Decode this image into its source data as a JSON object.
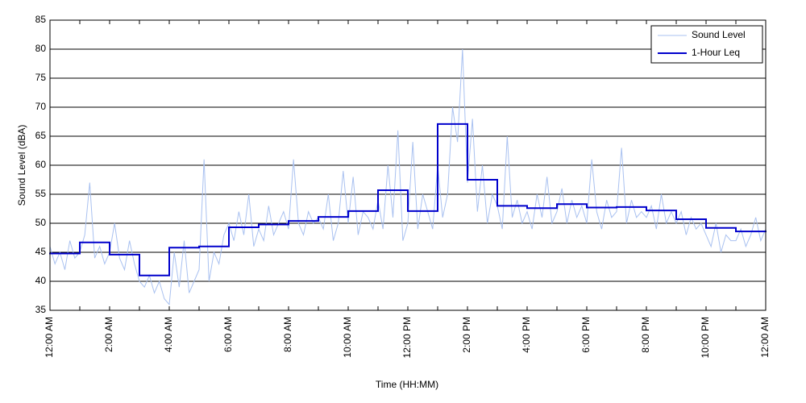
{
  "chart_data": {
    "type": "line",
    "xlabel": "Time (HH:MM)",
    "ylabel": "Sound Level (dBA)",
    "xlim": [
      0,
      1440
    ],
    "ylim": [
      35,
      85
    ],
    "yticks": [
      35,
      40,
      45,
      50,
      55,
      60,
      65,
      70,
      75,
      80,
      85
    ],
    "xticks": [
      {
        "value": 0,
        "label": "12:00 AM"
      },
      {
        "value": 60,
        "label": null
      },
      {
        "value": 120,
        "label": "2:00 AM"
      },
      {
        "value": 180,
        "label": null
      },
      {
        "value": 240,
        "label": "4:00 AM"
      },
      {
        "value": 300,
        "label": null
      },
      {
        "value": 360,
        "label": "6:00 AM"
      },
      {
        "value": 420,
        "label": null
      },
      {
        "value": 480,
        "label": "8:00 AM"
      },
      {
        "value": 540,
        "label": null
      },
      {
        "value": 600,
        "label": "10:00 AM"
      },
      {
        "value": 660,
        "label": null
      },
      {
        "value": 720,
        "label": "12:00 PM"
      },
      {
        "value": 780,
        "label": null
      },
      {
        "value": 840,
        "label": "2:00 PM"
      },
      {
        "value": 900,
        "label": null
      },
      {
        "value": 960,
        "label": "4:00 PM"
      },
      {
        "value": 1020,
        "label": null
      },
      {
        "value": 1080,
        "label": "6:00 PM"
      },
      {
        "value": 1140,
        "label": null
      },
      {
        "value": 1200,
        "label": "8:00 PM"
      },
      {
        "value": 1260,
        "label": null
      },
      {
        "value": 1320,
        "label": "10:00 PM"
      },
      {
        "value": 1380,
        "label": null
      },
      {
        "value": 1440,
        "label": "12:00 AM"
      }
    ],
    "grid": true,
    "legend": "upper right",
    "series": [
      {
        "name": "Sound Level",
        "color": "#a9c1f0",
        "style": "line",
        "x": [
          0,
          10,
          20,
          30,
          40,
          50,
          60,
          70,
          80,
          90,
          100,
          110,
          120,
          130,
          140,
          150,
          160,
          170,
          180,
          190,
          200,
          210,
          220,
          230,
          240,
          250,
          260,
          270,
          280,
          290,
          300,
          310,
          320,
          330,
          340,
          350,
          360,
          370,
          380,
          390,
          400,
          410,
          420,
          430,
          440,
          450,
          460,
          470,
          480,
          490,
          500,
          510,
          520,
          530,
          540,
          550,
          560,
          570,
          580,
          590,
          600,
          610,
          620,
          630,
          640,
          650,
          660,
          670,
          680,
          690,
          700,
          710,
          720,
          730,
          740,
          750,
          760,
          770,
          780,
          790,
          800,
          810,
          820,
          830,
          840,
          850,
          860,
          870,
          880,
          890,
          900,
          910,
          920,
          930,
          940,
          950,
          960,
          970,
          980,
          990,
          1000,
          1010,
          1020,
          1030,
          1040,
          1050,
          1060,
          1070,
          1080,
          1090,
          1100,
          1110,
          1120,
          1130,
          1140,
          1150,
          1160,
          1170,
          1180,
          1190,
          1200,
          1210,
          1220,
          1230,
          1240,
          1250,
          1260,
          1270,
          1280,
          1290,
          1300,
          1310,
          1320,
          1330,
          1340,
          1350,
          1360,
          1370,
          1380,
          1390,
          1400,
          1410,
          1420,
          1430,
          1440
        ],
        "values": [
          46,
          43,
          45,
          42,
          47,
          44,
          45,
          48,
          57,
          44,
          46,
          43,
          45,
          50,
          44,
          42,
          47,
          43,
          40,
          39,
          41,
          38,
          40,
          37,
          36,
          45,
          39,
          47,
          38,
          40,
          42,
          61,
          40,
          45,
          43,
          48,
          50,
          47,
          52,
          48,
          55,
          46,
          49,
          47,
          53,
          48,
          50,
          52,
          49,
          61,
          50,
          48,
          52,
          50,
          51,
          49,
          55,
          47,
          50,
          59,
          50,
          58,
          48,
          52,
          51,
          49,
          54,
          49,
          60,
          51,
          66,
          47,
          50,
          64,
          49,
          55,
          52,
          49,
          60,
          51,
          55,
          70,
          64,
          80,
          57,
          68,
          52,
          60,
          50,
          55,
          53,
          49,
          65,
          51,
          54,
          50,
          52,
          49,
          55,
          51,
          58,
          50,
          52,
          56,
          50,
          54,
          51,
          53,
          50,
          61,
          52,
          49,
          54,
          51,
          52,
          63,
          50,
          54,
          51,
          52,
          51,
          53,
          49,
          55,
          50,
          52,
          50,
          52,
          48,
          51,
          49,
          50,
          48,
          46,
          50,
          45,
          48,
          47,
          47,
          49,
          46,
          48,
          51,
          47,
          49
        ]
      },
      {
        "name": "1-Hour Leq",
        "color": "#0000cc",
        "style": "step",
        "x": [
          0,
          60,
          120,
          180,
          240,
          300,
          360,
          420,
          480,
          540,
          600,
          660,
          720,
          780,
          840,
          900,
          960,
          1020,
          1080,
          1140,
          1200,
          1260,
          1320,
          1380
        ],
        "values": [
          44.8,
          46.7,
          44.6,
          41.0,
          45.8,
          46.0,
          49.3,
          49.8,
          50.4,
          51.1,
          52.1,
          55.7,
          52.1,
          67.1,
          57.5,
          53.0,
          52.6,
          53.3,
          52.7,
          52.8,
          52.2,
          50.7,
          49.2,
          48.6
        ]
      }
    ]
  }
}
